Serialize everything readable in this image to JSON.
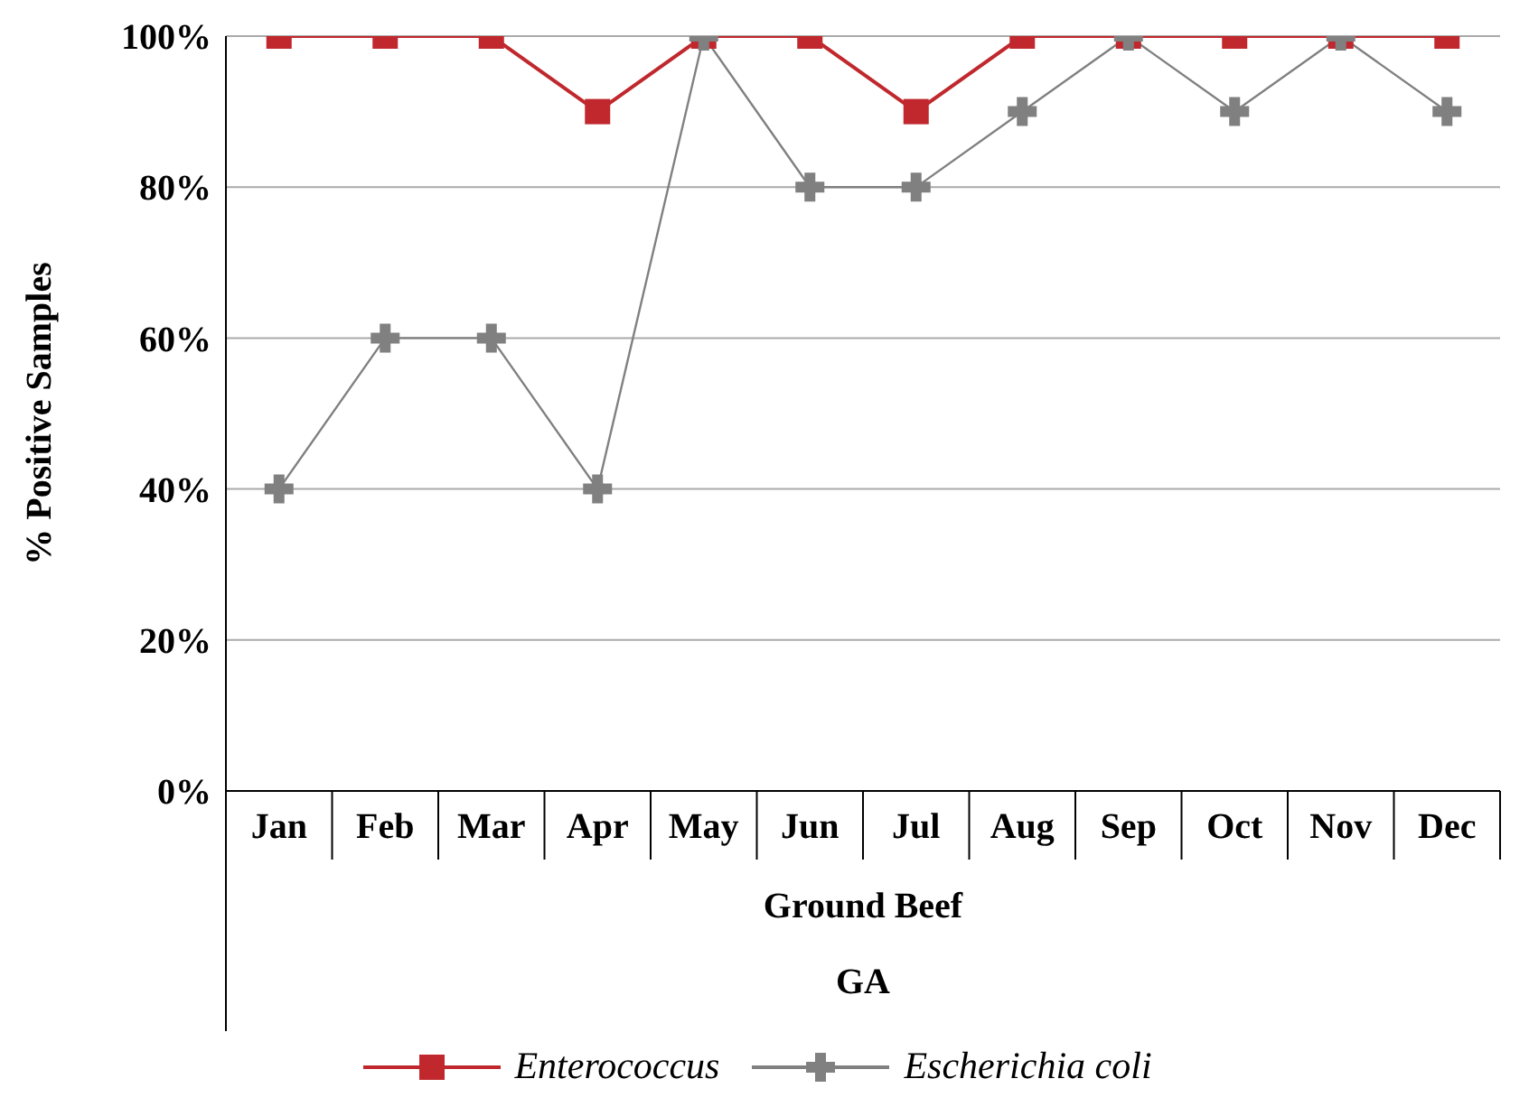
{
  "chart_data": {
    "type": "line",
    "ylabel": "% Positive Samples",
    "xlabel": "Ground Beef",
    "annotations": [
      "GA"
    ],
    "categories": [
      "Jan",
      "Feb",
      "Mar",
      "Apr",
      "May",
      "Jun",
      "Jul",
      "Aug",
      "Sep",
      "Oct",
      "Nov",
      "Dec"
    ],
    "series": [
      {
        "name": "Enterococcus",
        "color": "#c0282d",
        "marker": "square",
        "values": [
          100,
          100,
          100,
          90,
          100,
          100,
          90,
          100,
          100,
          100,
          100,
          100
        ]
      },
      {
        "name": "Escherichia coli",
        "color": "#808080",
        "marker": "cross",
        "values": [
          40,
          60,
          60,
          40,
          100,
          80,
          80,
          90,
          100,
          90,
          100,
          90
        ]
      }
    ],
    "ylim": [
      0,
      100
    ],
    "yticks": [
      {
        "value": 0,
        "label": "0%"
      },
      {
        "value": 20,
        "label": "20%"
      },
      {
        "value": 40,
        "label": "40%"
      },
      {
        "value": 60,
        "label": "60%"
      },
      {
        "value": 80,
        "label": "80%"
      },
      {
        "value": 100,
        "label": "100%"
      }
    ],
    "grid": "y",
    "legend": "bottom",
    "line_style": "solid"
  }
}
